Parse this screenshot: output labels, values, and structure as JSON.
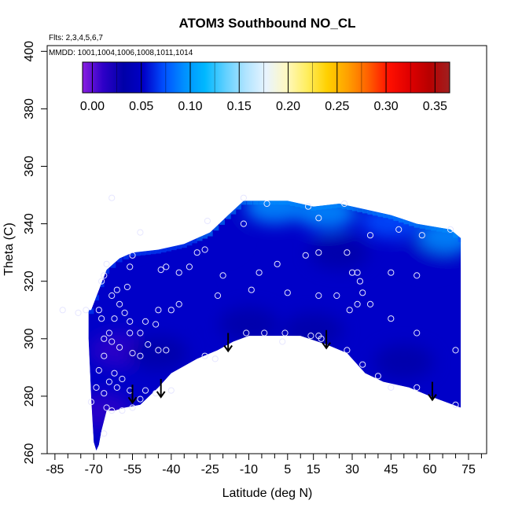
{
  "chart_data": {
    "type": "heatmap",
    "title": "ATOM3 Southbound NO_CL",
    "flights_label": "Flts: 2,3,4,5,6,7",
    "mmdd_label": "MMDD: 1001,1004,1006,1008,1011,1014",
    "xlabel": "Latitude (deg N)",
    "ylabel": "Theta (C)",
    "xlim": [
      -88,
      82
    ],
    "ylim": [
      260,
      402
    ],
    "x_ticks": [
      -85,
      -70,
      -55,
      -40,
      -25,
      -10,
      5,
      15,
      30,
      45,
      60,
      75
    ],
    "x_minor_ticks": [
      -80,
      -75,
      -65,
      -60,
      -50,
      -45,
      -35,
      -30,
      -20,
      -15,
      -5,
      0,
      10,
      20,
      25,
      35,
      40,
      50,
      55,
      65,
      70,
      80
    ],
    "y_ticks": [
      260,
      280,
      300,
      320,
      340,
      360,
      380,
      400
    ],
    "colorbar": {
      "min": -0.01,
      "max": 0.365,
      "ticks": [
        "0.00",
        "0.05",
        "0.10",
        "0.15",
        "0.20",
        "0.25",
        "0.30",
        "0.35"
      ],
      "tick_values": [
        0.0,
        0.05,
        0.1,
        0.15,
        0.2,
        0.25,
        0.3,
        0.35
      ],
      "colors": [
        "#8a1fe0",
        "#2e00c8",
        "#0000a8",
        "#0000c8",
        "#0050ff",
        "#0090ff",
        "#00b8ff",
        "#60d0ff",
        "#b0e4ff",
        "#e8f4ff",
        "#fff8c0",
        "#ffee60",
        "#ffd000",
        "#ffa000",
        "#ff6000",
        "#ff1000",
        "#e00000",
        "#b80000",
        "#a02020"
      ]
    },
    "upper_boundary": [
      [
        -71,
        310
      ],
      [
        -65,
        324
      ],
      [
        -60,
        328
      ],
      [
        -55,
        330
      ],
      [
        -45,
        331
      ],
      [
        -35,
        333
      ],
      [
        -25,
        337
      ],
      [
        -18,
        343
      ],
      [
        -12,
        348
      ],
      [
        -5,
        348
      ],
      [
        5,
        348
      ],
      [
        15,
        346
      ],
      [
        25,
        347
      ],
      [
        35,
        345
      ],
      [
        45,
        343
      ],
      [
        55,
        340
      ],
      [
        68,
        338
      ],
      [
        72,
        335
      ],
      [
        72,
        310
      ]
    ],
    "lower_boundary": [
      [
        72,
        276
      ],
      [
        60,
        280
      ],
      [
        52,
        283
      ],
      [
        42,
        285
      ],
      [
        35,
        288
      ],
      [
        28,
        295
      ],
      [
        20,
        298
      ],
      [
        10,
        301
      ],
      [
        0,
        301
      ],
      [
        -10,
        301
      ],
      [
        -16,
        299
      ],
      [
        -22,
        296
      ],
      [
        -30,
        293
      ],
      [
        -40,
        288
      ],
      [
        -45,
        283
      ],
      [
        -52,
        277
      ],
      [
        -58,
        276
      ],
      [
        -62,
        275
      ],
      [
        -65,
        275
      ],
      [
        -67,
        268
      ],
      [
        -68,
        263
      ],
      [
        -69,
        261
      ],
      [
        -70,
        264
      ],
      [
        -71,
        280
      ],
      [
        -72,
        300
      ],
      [
        -72,
        310
      ]
    ],
    "hotspots": [
      {
        "lat": -67,
        "theta": 275,
        "value": 0.01
      },
      {
        "lat": -60,
        "theta": 296,
        "value": 0.02
      },
      {
        "lat": -10,
        "theta": 305,
        "value": 0.03
      },
      {
        "lat": 15,
        "theta": 303,
        "value": 0.03
      },
      {
        "lat": -45,
        "theta": 295,
        "value": 0.03
      },
      {
        "lat": 50,
        "theta": 292,
        "value": 0.03
      },
      {
        "lat": 60,
        "theta": 330,
        "value": 0.05
      },
      {
        "lat": 25,
        "theta": 330,
        "value": 0.04
      },
      {
        "lat": -25,
        "theta": 335,
        "value": 0.06
      },
      {
        "lat": 0,
        "theta": 346,
        "value": 0.1
      },
      {
        "lat": 20,
        "theta": 344,
        "value": 0.09
      },
      {
        "lat": 45,
        "theta": 341,
        "value": 0.08
      },
      {
        "lat": 67,
        "theta": 336,
        "value": 0.1
      },
      {
        "lat": -40,
        "theta": 315,
        "value": 0.06
      }
    ],
    "background_value": 0.06,
    "observations": [
      [
        -63,
        349
      ],
      [
        -12,
        349
      ],
      [
        -3,
        347
      ],
      [
        13,
        346
      ],
      [
        27,
        347
      ],
      [
        17,
        342
      ],
      [
        -26,
        341
      ],
      [
        -52,
        337
      ],
      [
        -12,
        340
      ],
      [
        48,
        338
      ],
      [
        57,
        336
      ],
      [
        37,
        336
      ],
      [
        68,
        338
      ],
      [
        -27,
        331
      ],
      [
        -30,
        330
      ],
      [
        -55,
        329
      ],
      [
        -65,
        326
      ],
      [
        -33,
        325
      ],
      [
        -42,
        325
      ],
      [
        -44,
        324
      ],
      [
        -56,
        325
      ],
      [
        -37,
        323
      ],
      [
        -6,
        323
      ],
      [
        -20,
        322
      ],
      [
        1,
        326
      ],
      [
        12,
        329
      ],
      [
        17,
        330
      ],
      [
        28,
        330
      ],
      [
        30,
        323
      ],
      [
        32,
        323
      ],
      [
        33,
        320
      ],
      [
        45,
        323
      ],
      [
        55,
        322
      ],
      [
        -66,
        322
      ],
      [
        -67,
        320
      ],
      [
        -57,
        318
      ],
      [
        -61,
        317
      ],
      [
        -9,
        317
      ],
      [
        5,
        316
      ],
      [
        17,
        315
      ],
      [
        24,
        315
      ],
      [
        -22,
        315
      ],
      [
        -37,
        312
      ],
      [
        -60,
        312
      ],
      [
        -63,
        315
      ],
      [
        -40,
        310
      ],
      [
        -45,
        310
      ],
      [
        -58,
        309
      ],
      [
        -50,
        306
      ],
      [
        -56,
        306
      ],
      [
        -62,
        307
      ],
      [
        -68,
        310
      ],
      [
        -67,
        307
      ],
      [
        -76,
        309
      ],
      [
        -82,
        310
      ],
      [
        -73,
        310
      ],
      [
        34,
        316
      ],
      [
        37,
        312
      ],
      [
        32,
        312
      ],
      [
        29,
        310
      ],
      [
        45,
        307
      ],
      [
        -46,
        305
      ],
      [
        -52,
        302
      ],
      [
        -56,
        302
      ],
      [
        -64,
        302
      ],
      [
        -66,
        300
      ],
      [
        -63,
        299
      ],
      [
        -49,
        298
      ],
      [
        -60,
        297
      ],
      [
        -45,
        296
      ],
      [
        -42,
        296
      ],
      [
        -55,
        295
      ],
      [
        -52,
        294
      ],
      [
        -66,
        294
      ],
      [
        -68,
        289
      ],
      [
        -62,
        288
      ],
      [
        -59,
        286
      ],
      [
        -64,
        285
      ],
      [
        -61,
        283
      ],
      [
        -66,
        281
      ],
      [
        -56,
        282
      ],
      [
        -50,
        282
      ],
      [
        -46,
        281
      ],
      [
        -52,
        279
      ],
      [
        -55,
        276
      ],
      [
        -63,
        275
      ],
      [
        -59,
        275
      ],
      [
        -65,
        276
      ],
      [
        -66,
        267
      ],
      [
        -11,
        302
      ],
      [
        -4,
        302
      ],
      [
        4,
        302
      ],
      [
        14,
        301
      ],
      [
        17,
        301
      ],
      [
        18,
        300
      ],
      [
        28,
        296
      ],
      [
        34,
        291
      ],
      [
        40,
        287
      ],
      [
        45,
        283
      ],
      [
        55,
        283
      ],
      [
        55,
        302
      ],
      [
        70,
        296
      ],
      [
        70,
        277
      ],
      [
        -71,
        278
      ],
      [
        -69,
        283
      ],
      [
        -40,
        282
      ],
      [
        -27,
        294
      ],
      [
        -23,
        293
      ],
      [
        3,
        299
      ]
    ],
    "arrows": [
      {
        "lat": -55,
        "theta_top": 284
      },
      {
        "lat": -44,
        "theta_top": 286
      },
      {
        "lat": -18,
        "theta_top": 302
      },
      {
        "lat": 20,
        "theta_top": 303
      },
      {
        "lat": 61,
        "theta_top": 285
      }
    ]
  }
}
